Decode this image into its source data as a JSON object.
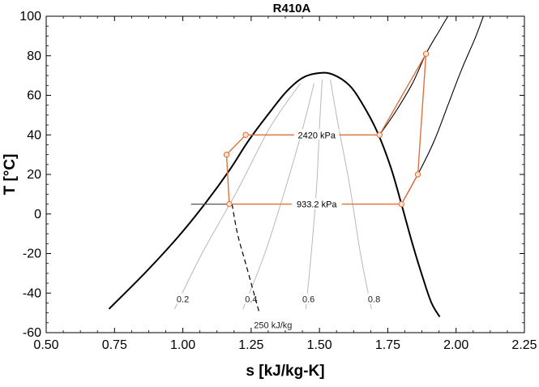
{
  "chart_data": {
    "type": "line",
    "title": "R410A",
    "xlabel": "s [kJ/kg-K]",
    "ylabel": "T [°C]",
    "xlim": [
      0.5,
      2.25
    ],
    "ylim": [
      -60,
      100
    ],
    "xticks": [
      0.5,
      0.75,
      1.0,
      1.25,
      1.5,
      1.75,
      2.0,
      2.25
    ],
    "xtick_labels": [
      "0.50",
      "0.75",
      "1.00",
      "1.25",
      "1.50",
      "1.75",
      "2.00",
      "2.25"
    ],
    "yticks": [
      -60,
      -40,
      -20,
      0,
      20,
      40,
      60,
      80,
      100
    ],
    "ytick_labels": [
      "-60",
      "-40",
      "-20",
      "0",
      "20",
      "40",
      "60",
      "80",
      "100"
    ],
    "grid": false,
    "colors": {
      "dome": "#000000",
      "cycle": "#e0703a",
      "quality": "#b8b8b8",
      "marker_fill": "#fbe2d2"
    },
    "saturation_dome": [
      [
        0.73,
        -48
      ],
      [
        0.86,
        -30
      ],
      [
        0.98,
        -12
      ],
      [
        1.08,
        5
      ],
      [
        1.17,
        22
      ],
      [
        1.24,
        37
      ],
      [
        1.31,
        50
      ],
      [
        1.38,
        62
      ],
      [
        1.44,
        69
      ],
      [
        1.5,
        71.3
      ],
      [
        1.55,
        70.5
      ],
      [
        1.61,
        65
      ],
      [
        1.66,
        55
      ],
      [
        1.71,
        42
      ],
      [
        1.76,
        24
      ],
      [
        1.8,
        5
      ],
      [
        1.84,
        -15
      ],
      [
        1.88,
        -33
      ],
      [
        1.91,
        -45
      ],
      [
        1.94,
        -52
      ]
    ],
    "isobars": [
      {
        "label": "2420 kPa",
        "label_x": 1.49,
        "label_y": 40,
        "points": [
          [
            1.72,
            40
          ],
          [
            1.78,
            52
          ],
          [
            1.84,
            66
          ],
          [
            1.89,
            81
          ],
          [
            1.94,
            93
          ],
          [
            1.97,
            100
          ]
        ]
      },
      {
        "label": "933.2 kPa",
        "label_x": 1.49,
        "label_y": 5,
        "points": [
          [
            1.8,
            5
          ],
          [
            1.86,
            20
          ],
          [
            1.92,
            37
          ],
          [
            1.97,
            55
          ],
          [
            2.02,
            73
          ],
          [
            2.07,
            89
          ],
          [
            2.1,
            100
          ]
        ]
      }
    ],
    "quality_lines": [
      {
        "label": "0.2",
        "label_x": 1.0,
        "label_y": -43,
        "points": [
          [
            0.97,
            -48
          ],
          [
            1.07,
            -20
          ],
          [
            1.2,
            12
          ],
          [
            1.32,
            44
          ],
          [
            1.43,
            66
          ]
        ]
      },
      {
        "label": "0.4",
        "label_x": 1.25,
        "label_y": -43,
        "points": [
          [
            1.22,
            -48
          ],
          [
            1.3,
            -20
          ],
          [
            1.38,
            15
          ],
          [
            1.44,
            44
          ],
          [
            1.48,
            66
          ]
        ]
      },
      {
        "label": "0.6",
        "label_x": 1.46,
        "label_y": -43,
        "points": [
          [
            1.45,
            -48
          ],
          [
            1.47,
            -20
          ],
          [
            1.49,
            15
          ],
          [
            1.5,
            44
          ],
          [
            1.51,
            68
          ]
        ]
      },
      {
        "label": "0.8",
        "label_x": 1.7,
        "label_y": -43,
        "points": [
          [
            1.69,
            -48
          ],
          [
            1.65,
            -20
          ],
          [
            1.61,
            15
          ],
          [
            1.57,
            44
          ],
          [
            1.54,
            68
          ]
        ]
      }
    ],
    "isenthalp": {
      "label": "250 kJ/kg",
      "label_x": 1.33,
      "label_y": -56,
      "points": [
        [
          1.18,
          5
        ],
        [
          1.2,
          -10
        ],
        [
          1.23,
          -25
        ],
        [
          1.26,
          -40
        ],
        [
          1.28,
          -50
        ]
      ]
    },
    "subcooled_line": [
      [
        1.03,
        5
      ],
      [
        1.18,
        5
      ]
    ],
    "cycle": [
      [
        1.17,
        5
      ],
      [
        1.16,
        30
      ],
      [
        1.23,
        40
      ],
      [
        1.72,
        40
      ],
      [
        1.89,
        81
      ],
      [
        1.86,
        20
      ],
      [
        1.8,
        5
      ],
      [
        1.17,
        5
      ]
    ],
    "state_points": [
      [
        1.17,
        5
      ],
      [
        1.16,
        30
      ],
      [
        1.23,
        40
      ],
      [
        1.72,
        40
      ],
      [
        1.89,
        81
      ],
      [
        1.86,
        20
      ],
      [
        1.8,
        5
      ]
    ]
  }
}
